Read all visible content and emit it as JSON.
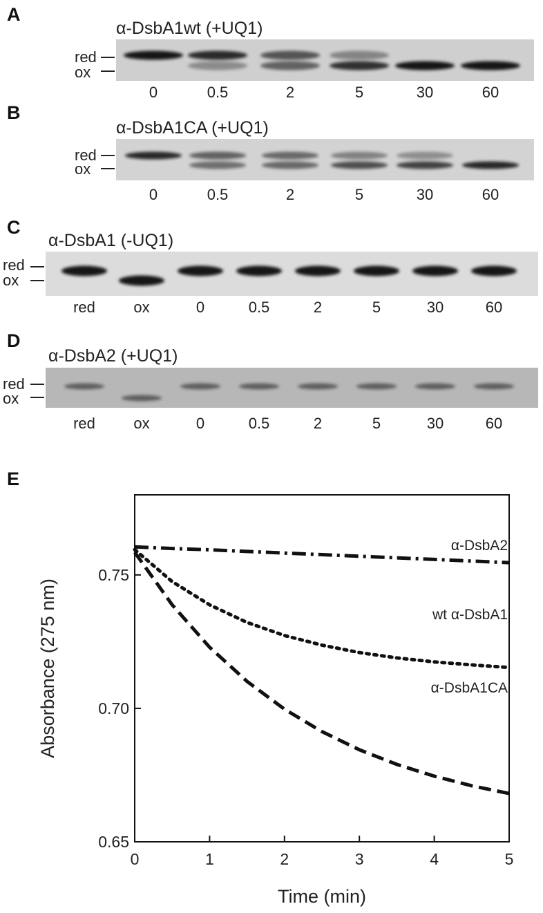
{
  "panels": [
    {
      "label": "A",
      "title": "α-DsbA1wt (+UQ1)",
      "markers": [
        "red",
        "ox"
      ],
      "lanes": [
        "0",
        "0.5",
        "2",
        "5",
        "30",
        "60"
      ],
      "reduced_fraction": [
        1.0,
        0.85,
        0.55,
        0.2,
        0.0,
        0.0
      ]
    },
    {
      "label": "B",
      "title": "α-DsbA1CA (+UQ1)",
      "markers": [
        "red",
        "ox"
      ],
      "lanes": [
        "0",
        "0.5",
        "2",
        "5",
        "30",
        "60"
      ],
      "reduced_fraction": [
        1.0,
        0.55,
        0.5,
        0.3,
        0.2,
        0.0
      ]
    },
    {
      "label": "C",
      "title": "α-DsbA1 (-UQ1)",
      "markers": [
        "red",
        "ox"
      ],
      "lanes": [
        "red",
        "ox",
        "0",
        "0.5",
        "2",
        "5",
        "30",
        "60"
      ],
      "reduced_fraction": [
        1.0,
        0.0,
        1.0,
        1.0,
        1.0,
        1.0,
        1.0,
        1.0
      ]
    },
    {
      "label": "D",
      "title": "α-DsbA2 (+UQ1)",
      "markers": [
        "red",
        "ox"
      ],
      "lanes": [
        "red",
        "ox",
        "0",
        "0.5",
        "2",
        "5",
        "30",
        "60"
      ],
      "reduced_fraction": [
        1.0,
        0.0,
        1.0,
        1.0,
        1.0,
        1.0,
        1.0,
        1.0
      ]
    }
  ],
  "chart_data": {
    "type": "line",
    "panel_label": "E",
    "title": "",
    "xlabel": "Time (min)",
    "ylabel": "Absorbance (275 nm)",
    "xlim": [
      0,
      5
    ],
    "ylim": [
      0.65,
      0.78
    ],
    "xticks": [
      "0",
      "1",
      "2",
      "3",
      "4",
      "5"
    ],
    "yticks": [
      "0.65",
      "0.70",
      "0.75"
    ],
    "grid": false,
    "x": [
      0,
      0.5,
      1,
      1.5,
      2,
      2.5,
      3,
      3.5,
      4,
      4.5,
      5
    ],
    "series": [
      {
        "name": "α-DsbA2",
        "style": "dash-dot",
        "values": [
          0.7605,
          0.7599,
          0.7594,
          0.7588,
          0.7582,
          0.7576,
          0.757,
          0.7564,
          0.7558,
          0.7552,
          0.7546
        ]
      },
      {
        "name": "wt α-DsbA1",
        "style": "dotted",
        "values": [
          0.7595,
          0.7475,
          0.7388,
          0.7322,
          0.7273,
          0.7237,
          0.7209,
          0.7189,
          0.7174,
          0.7163,
          0.7153
        ]
      },
      {
        "name": "α-DsbA1CA",
        "style": "dashed",
        "values": [
          0.7585,
          0.7388,
          0.7229,
          0.7101,
          0.6997,
          0.6913,
          0.6845,
          0.679,
          0.6746,
          0.671,
          0.6681
        ]
      }
    ]
  },
  "colors": {
    "ink": "#111111",
    "gel_light": "#d6d6d6",
    "gel_dark": "#b4b4b4",
    "band": "#161616"
  }
}
